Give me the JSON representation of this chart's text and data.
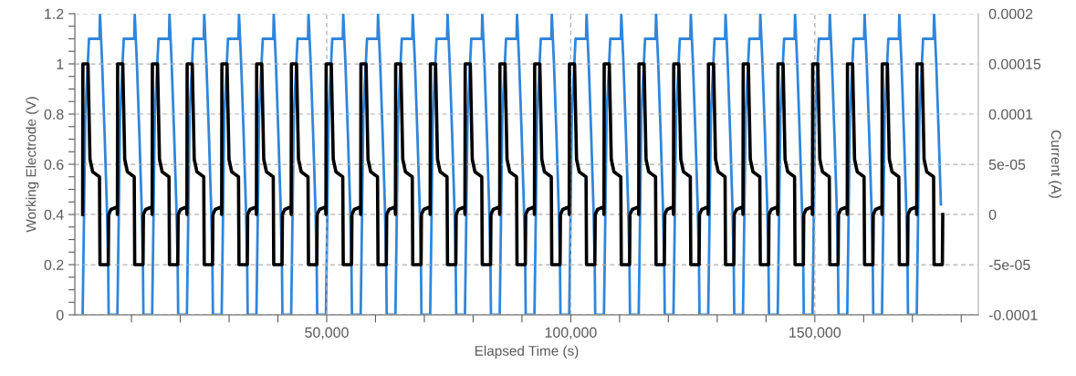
{
  "chart_data": {
    "type": "line",
    "xlabel": "Elapsed Time (s)",
    "ylabel": "Working Electrode (V)",
    "y2label": "Current (A)",
    "xlim": [
      -1600,
      183500
    ],
    "xticks": [
      {
        "value": 10000,
        "label": null
      },
      {
        "value": 20000,
        "label": null
      },
      {
        "value": 30000,
        "label": null
      },
      {
        "value": 40000,
        "label": null
      },
      {
        "value": 50000,
        "label": "50,000"
      },
      {
        "value": 60000,
        "label": null
      },
      {
        "value": 70000,
        "label": null
      },
      {
        "value": 80000,
        "label": null
      },
      {
        "value": 90000,
        "label": null
      },
      {
        "value": 100000,
        "label": "100,000"
      },
      {
        "value": 110000,
        "label": null
      },
      {
        "value": 120000,
        "label": null
      },
      {
        "value": 130000,
        "label": null
      },
      {
        "value": 140000,
        "label": null
      },
      {
        "value": 150000,
        "label": "150,000"
      },
      {
        "value": 160000,
        "label": null
      },
      {
        "value": 170000,
        "label": null
      },
      {
        "value": 180000,
        "label": null
      }
    ],
    "ylim": [
      0,
      1.2
    ],
    "yticks": [
      0,
      {
        "value": 0.05,
        "label": null
      },
      {
        "value": 0.1,
        "label": null
      },
      {
        "value": 0.15,
        "label": null
      },
      0.2,
      {
        "value": 0.25,
        "label": null
      },
      {
        "value": 0.3,
        "label": null
      },
      {
        "value": 0.35,
        "label": null
      },
      0.4,
      {
        "value": 0.45,
        "label": null
      },
      {
        "value": 0.5,
        "label": null
      },
      {
        "value": 0.55,
        "label": null
      },
      0.6,
      {
        "value": 0.65,
        "label": null
      },
      {
        "value": 0.7,
        "label": null
      },
      {
        "value": 0.75,
        "label": null
      },
      0.8,
      {
        "value": 0.85,
        "label": null
      },
      {
        "value": 0.9,
        "label": null
      },
      {
        "value": 0.95,
        "label": null
      },
      1,
      {
        "value": 1.05,
        "label": null
      },
      {
        "value": 1.1,
        "label": null
      },
      {
        "value": 1.15,
        "label": null
      },
      1.2
    ],
    "y2lim": [
      -0.0001,
      0.0002
    ],
    "y2ticks": [
      {
        "value": -0.0001,
        "label": "-0.0001"
      },
      {
        "value": -5e-05,
        "label": "-5e-05"
      },
      {
        "value": 0,
        "label": "0"
      },
      {
        "value": 5e-05,
        "label": "5e-05"
      },
      {
        "value": 0.0001,
        "label": "0.0001"
      },
      {
        "value": 0.00015,
        "label": "0.00015"
      },
      {
        "value": 0.0002,
        "label": "0.0002"
      }
    ],
    "grid": true,
    "marker": "none",
    "line_style": "solid",
    "series": [
      {
        "color": "#2f86dc",
        "axis": "y2",
        "x": [
          0,
          200,
          550,
          1300,
          3450,
          3550,
          4000,
          4500,
          4950,
          5230,
          5330,
          7050,
          7120,
          7320,
          7670,
          8420,
          10570,
          10670,
          11120,
          11620,
          12070,
          12350,
          12450,
          14170,
          14240,
          14440,
          14790,
          15540,
          17690,
          17790,
          18240,
          18740,
          19190,
          19470,
          19570,
          21290,
          21360,
          21560,
          21910,
          22660,
          24810,
          24910,
          25360,
          25860,
          26310,
          26590,
          26690,
          28410,
          28480,
          28680,
          29030,
          29780,
          31930,
          32030,
          32480,
          32980,
          33430,
          33710,
          33810,
          35530,
          35600,
          35800,
          36150,
          36900,
          39050,
          39150,
          39600,
          40100,
          40550,
          40830,
          40930,
          42650,
          42720,
          42920,
          43270,
          44020,
          46170,
          46270,
          46720,
          47220,
          47670,
          47950,
          48050,
          49770,
          49840,
          50040,
          50390,
          51140,
          53290,
          53390,
          53840,
          54340,
          54790,
          55070,
          55170,
          56890,
          56960,
          57160,
          57510,
          58260,
          60410,
          60510,
          60960,
          61460,
          61910,
          62190,
          62290,
          64010,
          64080,
          64280,
          64630,
          65380,
          67530,
          67630,
          68080,
          68580,
          69030,
          69310,
          69410,
          71130,
          71200,
          71400,
          71750,
          72500,
          74650,
          74750,
          75200,
          75700,
          76150,
          76430,
          76530,
          78250,
          78320,
          78520,
          78870,
          79620,
          81770,
          81870,
          82320,
          82820,
          83270,
          83550,
          83650,
          85370,
          85440,
          85640,
          85990,
          86740,
          88890,
          88990,
          89440,
          89940,
          90390,
          90670,
          90770,
          92490,
          92560,
          92760,
          93110,
          93860,
          96010,
          96110,
          96560,
          97060,
          97510,
          97790,
          97890,
          99610,
          99680,
          99880,
          100230,
          100980,
          103130,
          103230,
          103680,
          104180,
          104630,
          104910,
          105010,
          106730,
          106800,
          107000,
          107350,
          108100,
          110250,
          110350,
          110800,
          111300,
          111750,
          112030,
          112130,
          113850,
          113920,
          114120,
          114470,
          115220,
          117370,
          117470,
          117920,
          118420,
          118870,
          119150,
          119250,
          120970,
          121040,
          121240,
          121590,
          122340,
          124490,
          124590,
          125040,
          125540,
          125990,
          126270,
          126370,
          128090,
          128160,
          128360,
          128710,
          129460,
          131610,
          131710,
          132160,
          132660,
          133110,
          133390,
          133490,
          135210,
          135280,
          135480,
          135830,
          136580,
          138730,
          138830,
          139280,
          139780,
          140230,
          140510,
          140610,
          142330,
          142400,
          142600,
          142950,
          143700,
          145850,
          145950,
          146400,
          146900,
          147350,
          147630,
          147730,
          149450,
          149520,
          149720,
          150070,
          150820,
          152970,
          153070,
          153520,
          154020,
          154470,
          154750,
          154850,
          156570,
          156640,
          156840,
          157190,
          157940,
          160090,
          160190,
          160640,
          161140,
          161590,
          161870,
          161970,
          163690,
          163760,
          163960,
          164310,
          165060,
          167210,
          167310,
          167760,
          168260,
          168710,
          168990,
          169090,
          170810,
          170880,
          171080,
          171430,
          172180,
          174330,
          174430,
          174880,
          175380,
          175830
        ],
        "values": [
          -0.0001,
          -3e-05,
          0.0001,
          0.000175,
          0.000175,
          0.0002,
          0.00015,
          8e-05,
          1e-05,
          -5e-05,
          -0.0001,
          -0.0001,
          -0.0001,
          -3e-05,
          0.0001,
          0.000175,
          0.000175,
          0.0002,
          0.00015,
          8e-05,
          1e-05,
          -5e-05,
          -0.0001,
          -0.0001,
          -0.0001,
          -3e-05,
          0.0001,
          0.000175,
          0.000175,
          0.0002,
          0.00015,
          8e-05,
          1e-05,
          -5e-05,
          -0.0001,
          -0.0001,
          -0.0001,
          -3e-05,
          0.0001,
          0.000175,
          0.000175,
          0.0002,
          0.00015,
          8e-05,
          1e-05,
          -5e-05,
          -0.0001,
          -0.0001,
          -0.0001,
          -3e-05,
          0.0001,
          0.000175,
          0.000175,
          0.0002,
          0.00015,
          8e-05,
          1e-05,
          -5e-05,
          -0.0001,
          -0.0001,
          -0.0001,
          -3e-05,
          0.0001,
          0.000175,
          0.000175,
          0.0002,
          0.00015,
          8e-05,
          1e-05,
          -5e-05,
          -0.0001,
          -0.0001,
          -0.0001,
          -3e-05,
          0.0001,
          0.000175,
          0.000175,
          0.0002,
          0.00015,
          8e-05,
          1e-05,
          -5e-05,
          -0.0001,
          -0.0001,
          -0.0001,
          -3e-05,
          0.0001,
          0.000175,
          0.000175,
          0.0002,
          0.00015,
          8e-05,
          1e-05,
          -5e-05,
          -0.0001,
          -0.0001,
          -0.0001,
          -3e-05,
          0.0001,
          0.000175,
          0.000175,
          0.0002,
          0.00015,
          8e-05,
          1e-05,
          -5e-05,
          -0.0001,
          -0.0001,
          -0.0001,
          -3e-05,
          0.0001,
          0.000175,
          0.000175,
          0.0002,
          0.00015,
          8e-05,
          1e-05,
          -5e-05,
          -0.0001,
          -0.0001,
          -0.0001,
          -3e-05,
          0.0001,
          0.000175,
          0.000175,
          0.0002,
          0.00015,
          8e-05,
          1e-05,
          -5e-05,
          -0.0001,
          -0.0001,
          -0.0001,
          -3e-05,
          0.0001,
          0.000175,
          0.000175,
          0.0002,
          0.00015,
          8e-05,
          1e-05,
          -5e-05,
          -0.0001,
          -0.0001,
          -0.0001,
          -3e-05,
          0.0001,
          0.000175,
          0.000175,
          0.0002,
          0.00015,
          8e-05,
          1e-05,
          -5e-05,
          -0.0001,
          -0.0001,
          -0.0001,
          -3e-05,
          0.0001,
          0.000175,
          0.000175,
          0.0002,
          0.00015,
          8e-05,
          1e-05,
          -5e-05,
          -0.0001,
          -0.0001,
          -0.0001,
          -3e-05,
          0.0001,
          0.000175,
          0.000175,
          0.0002,
          0.00015,
          8e-05,
          1e-05,
          -5e-05,
          -0.0001,
          -0.0001,
          -0.0001,
          -3e-05,
          0.0001,
          0.000175,
          0.000175,
          0.0002,
          0.00015,
          8e-05,
          1e-05,
          -5e-05,
          -0.0001,
          -0.0001,
          -0.0001,
          -3e-05,
          0.0001,
          0.000175,
          0.000175,
          0.0002,
          0.00015,
          8e-05,
          1e-05,
          -5e-05,
          -0.0001,
          -0.0001,
          -0.0001,
          -3e-05,
          0.0001,
          0.000175,
          0.000175,
          0.0002,
          0.00015,
          8e-05,
          1e-05,
          -5e-05,
          -0.0001,
          -0.0001,
          -0.0001,
          -3e-05,
          0.0001,
          0.000175,
          0.000175,
          0.0002,
          0.00015,
          8e-05,
          1e-05,
          -5e-05,
          -0.0001,
          -0.0001,
          -0.0001,
          -3e-05,
          0.0001,
          0.000175,
          0.000175,
          0.0002,
          0.00015,
          8e-05,
          1e-05,
          -5e-05,
          -0.0001,
          -0.0001,
          -0.0001,
          -3e-05,
          0.0001,
          0.000175,
          0.000175,
          0.0002,
          0.00015,
          8e-05,
          1e-05,
          -5e-05,
          -0.0001,
          -0.0001,
          -0.0001,
          -3e-05,
          0.0001,
          0.000175,
          0.000175,
          0.0002,
          0.00015,
          8e-05,
          1e-05,
          -5e-05,
          -0.0001,
          -0.0001,
          -0.0001,
          -3e-05,
          0.0001,
          0.000175,
          0.000175,
          0.0002,
          0.00015,
          8e-05,
          1e-05,
          -5e-05,
          -0.0001,
          -0.0001,
          -0.0001,
          -3e-05,
          0.0001,
          0.000175,
          0.000175,
          0.0002,
          0.00015,
          8e-05,
          1e-05,
          -5e-05,
          -0.0001,
          -0.0001,
          -0.0001,
          -3e-05,
          0.0001,
          0.000175,
          0.000175,
          0.0002,
          0.00015,
          8e-05,
          1e-05
        ]
      },
      {
        "color": "#000000",
        "axis": "y",
        "x": [
          0,
          50,
          1100,
          1500,
          2050,
          3450,
          3550,
          5250,
          5330,
          5800,
          7050,
          7120,
          7170,
          8220,
          8620,
          9170,
          10570,
          10670,
          12370,
          12450,
          12920,
          14170,
          14240,
          14290,
          15340,
          15740,
          16290,
          17690,
          17790,
          19490,
          19570,
          20040,
          21290,
          21360,
          21410,
          22460,
          22860,
          23410,
          24810,
          24910,
          26610,
          26690,
          27160,
          28410,
          28480,
          28530,
          29580,
          29980,
          30530,
          31930,
          32030,
          33730,
          33810,
          34280,
          35530,
          35600,
          35650,
          36700,
          37100,
          37650,
          39050,
          39150,
          40850,
          40930,
          41400,
          42650,
          42720,
          42770,
          43820,
          44220,
          44770,
          46170,
          46270,
          47970,
          48050,
          48520,
          49770,
          49840,
          49890,
          50940,
          51340,
          51890,
          53290,
          53390,
          55090,
          55170,
          55640,
          56890,
          56960,
          57010,
          58060,
          58460,
          59010,
          60410,
          60510,
          62210,
          62290,
          62760,
          64010,
          64080,
          64130,
          65180,
          65580,
          66130,
          67530,
          67630,
          69330,
          69410,
          69880,
          71130,
          71200,
          71250,
          72300,
          72700,
          73250,
          74650,
          74750,
          76450,
          76530,
          77000,
          78250,
          78320,
          78370,
          79420,
          79820,
          80370,
          81770,
          81870,
          83570,
          83650,
          84120,
          85370,
          85440,
          85490,
          86540,
          86940,
          87490,
          88890,
          88990,
          90690,
          90770,
          91240,
          92490,
          92560,
          92610,
          93660,
          94060,
          94610,
          96010,
          96110,
          97810,
          97890,
          98360,
          99610,
          99680,
          99730,
          100780,
          101180,
          101730,
          103130,
          103230,
          104930,
          105010,
          105480,
          106730,
          106800,
          106850,
          107900,
          108300,
          108850,
          110250,
          110350,
          112050,
          112130,
          112600,
          113850,
          113920,
          113970,
          115020,
          115420,
          115970,
          117370,
          117470,
          119170,
          119250,
          119720,
          120970,
          121040,
          121090,
          122140,
          122540,
          123090,
          124490,
          124590,
          126290,
          126370,
          126840,
          128090,
          128160,
          128210,
          129260,
          129660,
          130210,
          131610,
          131710,
          133410,
          133490,
          133960,
          135210,
          135280,
          135330,
          136380,
          136780,
          137330,
          138730,
          138830,
          140530,
          140610,
          141080,
          142330,
          142400,
          142450,
          143500,
          143900,
          144450,
          145850,
          145950,
          147650,
          147730,
          148200,
          149450,
          149520,
          149570,
          150620,
          151020,
          151570,
          152970,
          153070,
          154770,
          154850,
          155320,
          156570,
          156640,
          156690,
          157740,
          158140,
          158690,
          160090,
          160190,
          161890,
          161970,
          162440,
          163690,
          163760,
          163810,
          164860,
          165260,
          165810,
          167210,
          167310,
          169010,
          169090,
          169560,
          170810,
          170880,
          170930,
          171980,
          172380,
          172930,
          174330,
          174430,
          176130,
          176210
        ],
        "values": [
          0.4,
          1.0,
          1.0,
          0.62,
          0.57,
          0.55,
          0.2,
          0.2,
          0.4,
          0.42,
          0.43,
          0.4,
          1.0,
          1.0,
          0.62,
          0.57,
          0.55,
          0.2,
          0.2,
          0.4,
          0.42,
          0.43,
          0.4,
          1.0,
          1.0,
          0.62,
          0.57,
          0.55,
          0.2,
          0.2,
          0.4,
          0.42,
          0.43,
          0.4,
          1.0,
          1.0,
          0.62,
          0.57,
          0.55,
          0.2,
          0.2,
          0.4,
          0.42,
          0.43,
          0.4,
          1.0,
          1.0,
          0.62,
          0.57,
          0.55,
          0.2,
          0.2,
          0.4,
          0.42,
          0.43,
          0.4,
          1.0,
          1.0,
          0.62,
          0.57,
          0.55,
          0.2,
          0.2,
          0.4,
          0.42,
          0.43,
          0.4,
          1.0,
          1.0,
          0.62,
          0.57,
          0.55,
          0.2,
          0.2,
          0.4,
          0.42,
          0.43,
          0.4,
          1.0,
          1.0,
          0.62,
          0.57,
          0.55,
          0.2,
          0.2,
          0.4,
          0.42,
          0.43,
          0.4,
          1.0,
          1.0,
          0.62,
          0.57,
          0.55,
          0.2,
          0.2,
          0.4,
          0.42,
          0.43,
          0.4,
          1.0,
          1.0,
          0.62,
          0.57,
          0.55,
          0.2,
          0.2,
          0.4,
          0.42,
          0.43,
          0.4,
          1.0,
          1.0,
          0.62,
          0.57,
          0.55,
          0.2,
          0.2,
          0.4,
          0.42,
          0.43,
          0.4,
          1.0,
          1.0,
          0.62,
          0.57,
          0.55,
          0.2,
          0.2,
          0.4,
          0.42,
          0.43,
          0.4,
          1.0,
          1.0,
          0.62,
          0.57,
          0.55,
          0.2,
          0.2,
          0.4,
          0.42,
          0.43,
          0.4,
          1.0,
          1.0,
          0.62,
          0.57,
          0.55,
          0.2,
          0.2,
          0.4,
          0.42,
          0.43,
          0.4,
          1.0,
          1.0,
          0.62,
          0.57,
          0.55,
          0.2,
          0.2,
          0.4,
          0.42,
          0.43,
          0.4,
          1.0,
          1.0,
          0.62,
          0.57,
          0.55,
          0.2,
          0.2,
          0.4,
          0.42,
          0.43,
          0.4,
          1.0,
          1.0,
          0.62,
          0.57,
          0.55,
          0.2,
          0.2,
          0.4,
          0.42,
          0.43,
          0.4,
          1.0,
          1.0,
          0.62,
          0.57,
          0.55,
          0.2,
          0.2,
          0.4,
          0.42,
          0.43,
          0.4,
          1.0,
          1.0,
          0.62,
          0.57,
          0.55,
          0.2,
          0.2,
          0.4,
          0.42,
          0.43,
          0.4,
          1.0,
          1.0,
          0.62,
          0.57,
          0.55,
          0.2,
          0.2,
          0.4,
          0.42,
          0.43,
          0.4,
          1.0,
          1.0,
          0.62,
          0.57,
          0.55,
          0.2,
          0.2,
          0.4,
          0.42,
          0.43,
          0.4,
          1.0,
          1.0,
          0.62,
          0.57,
          0.55,
          0.2,
          0.2,
          0.4,
          0.42,
          0.43,
          0.4,
          1.0,
          1.0,
          0.62,
          0.57,
          0.55,
          0.2,
          0.2,
          0.4,
          0.42,
          0.43,
          0.4,
          1.0,
          1.0,
          0.62,
          0.57,
          0.55,
          0.2,
          0.2,
          0.4,
          0.42,
          0.43,
          0.4,
          1.0,
          1.0,
          0.62,
          0.57,
          0.55,
          0.2,
          0.2,
          0.4
        ]
      }
    ]
  }
}
